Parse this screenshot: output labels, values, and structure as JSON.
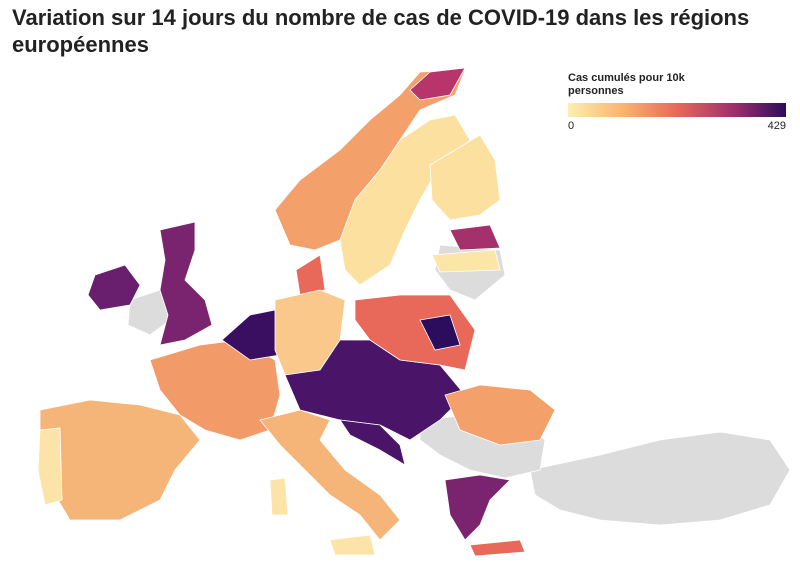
{
  "title": "Variation sur 14 jours du nombre de cas de COVID-19 dans les régions européennes",
  "legend": {
    "title": "Cas cumulés pour 10k personnes",
    "min": 0,
    "max": 429,
    "colors": [
      "#fcefb0",
      "#f9b56f",
      "#e8685a",
      "#a4306c",
      "#2c0c5c"
    ]
  }
}
